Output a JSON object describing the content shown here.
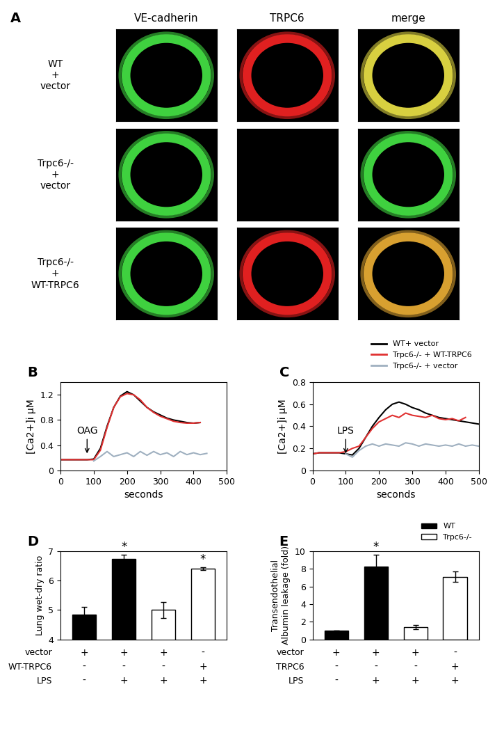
{
  "image_panel": {
    "title": "A",
    "columns": [
      "VE-cadherin",
      "TRPC6",
      "merge"
    ],
    "rows": [
      {
        "label": "WT\n+\nvector",
        "channel_colors": [
          "#3fd13f",
          "#e02020",
          "#d8d040"
        ]
      },
      {
        "label": "Trpc6-/-\n+\nvector",
        "channel_colors": [
          "#3fd13f",
          null,
          "#3fd13f"
        ]
      },
      {
        "label": "Trpc6-/-\n+\nWT-TRPC6",
        "channel_colors": [
          "#3fd13f",
          "#e02020",
          "#d8a030"
        ]
      }
    ]
  },
  "chart_data": [
    {
      "type": "line",
      "title": "B",
      "x_label": "seconds",
      "y_label": "[Ca2+]i μM",
      "xlim": [
        0,
        500
      ],
      "xticks": [
        0,
        100,
        200,
        300,
        400,
        500
      ],
      "ylim": [
        0,
        1.4
      ],
      "yticks": [
        0,
        0.4,
        0.8,
        1.2
      ],
      "annotation": {
        "text": "OAG",
        "x": 80
      },
      "series": [
        {
          "color": "#000000",
          "x": [
            0,
            20,
            40,
            60,
            80,
            100,
            120,
            140,
            160,
            180,
            200,
            220,
            240,
            260,
            280,
            300,
            320,
            340,
            360,
            380,
            400,
            420
          ],
          "values": [
            0.17,
            0.17,
            0.17,
            0.17,
            0.17,
            0.18,
            0.35,
            0.7,
            1.0,
            1.18,
            1.25,
            1.2,
            1.1,
            1.0,
            0.93,
            0.88,
            0.83,
            0.8,
            0.78,
            0.76,
            0.75,
            0.76
          ]
        },
        {
          "color": "#e03030",
          "x": [
            0,
            20,
            40,
            60,
            80,
            100,
            120,
            140,
            160,
            180,
            200,
            220,
            240,
            260,
            280,
            300,
            320,
            340,
            360,
            380,
            400,
            420
          ],
          "values": [
            0.17,
            0.17,
            0.17,
            0.17,
            0.17,
            0.17,
            0.32,
            0.68,
            1.0,
            1.17,
            1.22,
            1.2,
            1.12,
            1.0,
            0.92,
            0.86,
            0.82,
            0.78,
            0.76,
            0.75,
            0.75,
            0.76
          ]
        },
        {
          "color": "#9fb0c0",
          "x": [
            100,
            120,
            140,
            160,
            180,
            200,
            220,
            240,
            260,
            280,
            300,
            320,
            340,
            360,
            380,
            400,
            420,
            440
          ],
          "values": [
            0.15,
            0.22,
            0.3,
            0.22,
            0.25,
            0.28,
            0.22,
            0.3,
            0.24,
            0.3,
            0.25,
            0.28,
            0.22,
            0.3,
            0.25,
            0.28,
            0.25,
            0.27
          ]
        }
      ]
    },
    {
      "type": "line",
      "title": "C",
      "x_label": "seconds",
      "y_label": "[Ca2+]i μM",
      "xlim": [
        0,
        500
      ],
      "xticks": [
        0,
        100,
        200,
        300,
        400,
        500
      ],
      "ylim": [
        0,
        0.8
      ],
      "yticks": [
        0,
        0.2,
        0.4,
        0.6,
        0.8
      ],
      "legend": "upper right",
      "annotation": {
        "text": "LPS",
        "x": 100
      },
      "series": [
        {
          "name": "WT+ vector",
          "color": "#000000",
          "x": [
            0,
            20,
            40,
            60,
            80,
            100,
            120,
            140,
            160,
            180,
            200,
            220,
            240,
            260,
            280,
            300,
            320,
            340,
            360,
            380,
            400,
            420,
            440,
            460,
            480,
            500
          ],
          "values": [
            0.15,
            0.16,
            0.16,
            0.16,
            0.16,
            0.15,
            0.14,
            0.2,
            0.3,
            0.4,
            0.48,
            0.55,
            0.6,
            0.62,
            0.6,
            0.57,
            0.55,
            0.52,
            0.5,
            0.48,
            0.47,
            0.46,
            0.45,
            0.44,
            0.43,
            0.42
          ]
        },
        {
          "name": "Trpc6-/- + WT-TRPC6",
          "color": "#e03030",
          "x": [
            0,
            20,
            40,
            60,
            80,
            100,
            120,
            140,
            160,
            180,
            200,
            220,
            240,
            260,
            280,
            300,
            320,
            340,
            360,
            380,
            400,
            420,
            440,
            460
          ],
          "values": [
            0.15,
            0.16,
            0.16,
            0.16,
            0.16,
            0.17,
            0.2,
            0.22,
            0.3,
            0.38,
            0.44,
            0.47,
            0.5,
            0.48,
            0.52,
            0.5,
            0.49,
            0.48,
            0.5,
            0.47,
            0.46,
            0.47,
            0.45,
            0.48
          ]
        },
        {
          "name": "Trpc6-/- + vector",
          "color": "#9fb0c0",
          "x": [
            100,
            120,
            140,
            160,
            180,
            200,
            220,
            240,
            260,
            280,
            300,
            320,
            340,
            360,
            380,
            400,
            420,
            440,
            460,
            480,
            500
          ],
          "values": [
            0.15,
            0.12,
            0.18,
            0.22,
            0.24,
            0.22,
            0.24,
            0.23,
            0.22,
            0.25,
            0.24,
            0.22,
            0.24,
            0.23,
            0.22,
            0.23,
            0.22,
            0.24,
            0.22,
            0.23,
            0.22
          ]
        }
      ]
    },
    {
      "type": "bar",
      "title": "D",
      "y_label": "Lung wet-dry ratio",
      "categories": [
        null,
        null,
        null,
        null
      ],
      "values": [
        4.85,
        6.75,
        5.0,
        6.4
      ],
      "errors": [
        0.25,
        0.12,
        0.28,
        0.05
      ],
      "colors": [
        "#000000",
        "#000000",
        "#ffffff",
        "#ffffff"
      ],
      "annotations": [
        null,
        "*",
        null,
        "*"
      ],
      "ylim": [
        4,
        7
      ],
      "yticks": [
        4,
        5,
        6,
        7
      ],
      "condition_rows": [
        {
          "label": "vector",
          "marks": [
            "+",
            "+",
            "+",
            "-"
          ]
        },
        {
          "label": "WT-TRPC6",
          "marks": [
            "-",
            "-",
            "-",
            "+"
          ]
        },
        {
          "label": "LPS",
          "marks": [
            "-",
            "+",
            "+",
            "+"
          ]
        }
      ]
    },
    {
      "type": "bar",
      "title": "E",
      "y_label": "Transendothelial\nAlbumin leakage (fold)",
      "categories": [
        null,
        null,
        null,
        null
      ],
      "values": [
        1.0,
        8.3,
        1.4,
        7.1
      ],
      "errors": [
        0.0,
        1.3,
        0.2,
        0.6
      ],
      "colors": [
        "#000000",
        "#000000",
        "#ffffff",
        "#ffffff"
      ],
      "annotations": [
        null,
        "*",
        null,
        null
      ],
      "ylim": [
        0,
        10
      ],
      "yticks": [
        0,
        2,
        4,
        6,
        8,
        10
      ],
      "legend": "upper right",
      "legend_entries": [
        {
          "name": "WT",
          "color": "#000000"
        },
        {
          "name": "Trpc6-/-",
          "color": "#ffffff"
        }
      ],
      "condition_rows": [
        {
          "label": "vector",
          "marks": [
            "+",
            "+",
            "+",
            "-"
          ]
        },
        {
          "label": "TRPC6",
          "marks": [
            "-",
            "-",
            "-",
            "+"
          ]
        },
        {
          "label": "LPS",
          "marks": [
            "-",
            "+",
            "+",
            "+"
          ]
        }
      ]
    }
  ]
}
